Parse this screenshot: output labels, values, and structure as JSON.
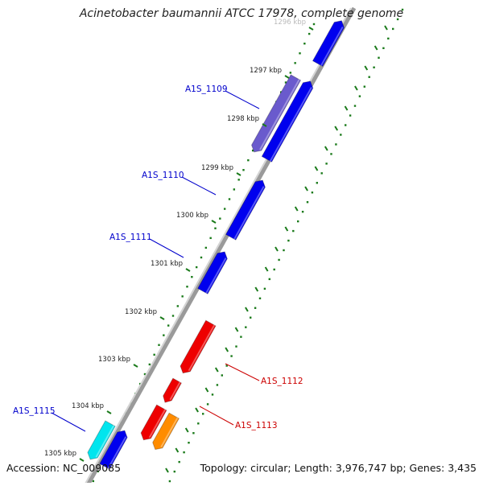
{
  "title": "Acinetobacter baumannii ATCC 17978, complete genome",
  "footer": {
    "accession": "Accession: NC_009085",
    "topology": "Topology: circular; Length: 3,976,747 bp; Genes: 3,435"
  },
  "ticks": [
    {
      "label": "1296 kbp"
    },
    {
      "label": "1297 kbp"
    },
    {
      "label": "1298 kbp"
    },
    {
      "label": "1299 kbp"
    },
    {
      "label": "1300 kbp"
    },
    {
      "label": "1301 kbp"
    },
    {
      "label": "1302 kbp"
    },
    {
      "label": "1303 kbp"
    },
    {
      "label": "1304 kbp"
    },
    {
      "label": "1305 kbp"
    }
  ],
  "gene_labels": [
    {
      "name": "A1S_1109",
      "color": "#0000cc"
    },
    {
      "name": "A1S_1110",
      "color": "#0000cc"
    },
    {
      "name": "A1S_1111",
      "color": "#0000cc"
    },
    {
      "name": "A1S_1112",
      "color": "#cc0000"
    },
    {
      "name": "A1S_1113",
      "color": "#cc0000"
    },
    {
      "name": "A1S_1115",
      "color": "#0000cc"
    }
  ],
  "colors": {
    "forward_gene": "#0000ee",
    "reverse_gene": "#ee0000",
    "highlight_purple": "#6a5acd",
    "orange_gene": "#ff8c00",
    "cyan_gene": "#00e5ee",
    "backbone": "#888888",
    "tick": "#1a7a1a"
  }
}
